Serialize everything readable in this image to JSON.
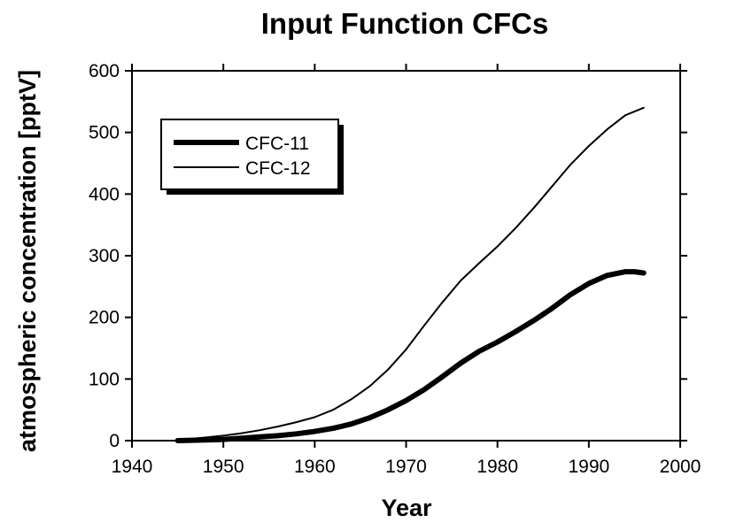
{
  "chart_data": {
    "type": "line",
    "title": "Input Function CFCs",
    "xlabel": "Year",
    "ylabel": "atmospheric concentration [pptV]",
    "xlim": [
      1940,
      2000
    ],
    "ylim": [
      0,
      600
    ],
    "xticks": [
      1940,
      1950,
      1960,
      1970,
      1980,
      1990,
      2000
    ],
    "yticks": [
      0,
      100,
      200,
      300,
      400,
      500,
      600
    ],
    "grid": false,
    "legend_position": "top-left",
    "series": [
      {
        "name": "CFC-11",
        "line_style": "thick",
        "color": "#000000",
        "x": [
          1945,
          1948,
          1950,
          1952,
          1954,
          1956,
          1958,
          1960,
          1962,
          1964,
          1966,
          1968,
          1970,
          1972,
          1974,
          1976,
          1978,
          1980,
          1982,
          1984,
          1986,
          1988,
          1990,
          1992,
          1994,
          1995,
          1996
        ],
        "y": [
          0,
          1,
          2,
          4,
          6,
          8,
          11,
          15,
          20,
          27,
          37,
          50,
          65,
          83,
          104,
          126,
          145,
          160,
          177,
          195,
          215,
          237,
          255,
          268,
          274,
          274,
          272
        ]
      },
      {
        "name": "CFC-12",
        "line_style": "thin",
        "color": "#000000",
        "x": [
          1945,
          1948,
          1950,
          1952,
          1954,
          1956,
          1958,
          1960,
          1962,
          1964,
          1966,
          1968,
          1970,
          1972,
          1974,
          1976,
          1978,
          1980,
          1982,
          1984,
          1986,
          1988,
          1990,
          1992,
          1994,
          1996
        ],
        "y": [
          1,
          5,
          8,
          12,
          17,
          23,
          30,
          38,
          50,
          67,
          88,
          115,
          148,
          187,
          225,
          260,
          288,
          315,
          345,
          378,
          413,
          448,
          478,
          505,
          528,
          540
        ]
      }
    ]
  }
}
